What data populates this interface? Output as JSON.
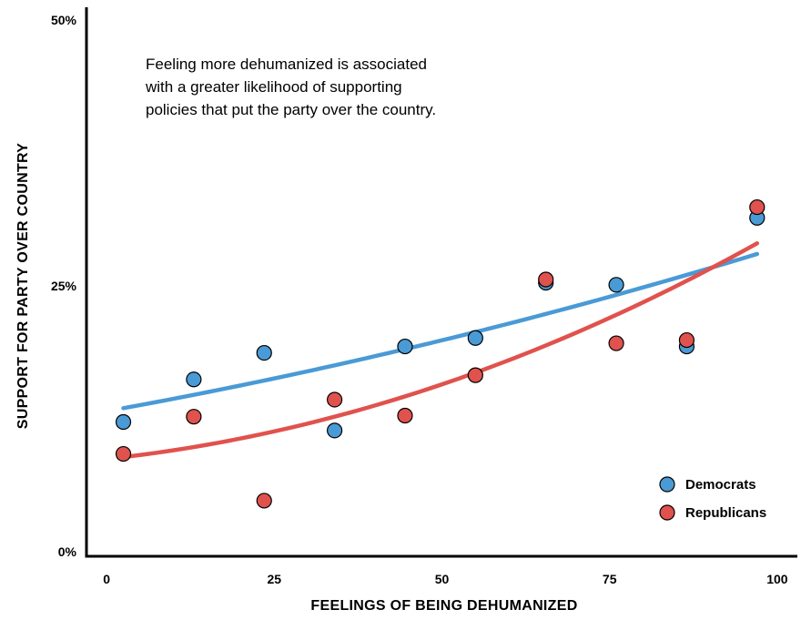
{
  "chart_data": {
    "type": "scatter",
    "xlabel": "FEELINGS OF BEING DEHUMANIZED",
    "ylabel": "SUPPORT FOR PARTY OVER COUNTRY",
    "xlim": [
      -3,
      103
    ],
    "ylim": [
      0,
      50
    ],
    "x_ticks": [
      {
        "value": 0,
        "label": "0"
      },
      {
        "value": 25,
        "label": "25"
      },
      {
        "value": 50,
        "label": "50"
      },
      {
        "value": 75,
        "label": "75"
      },
      {
        "value": 100,
        "label": "100"
      }
    ],
    "y_ticks": [
      {
        "value": 0,
        "label": "0%"
      },
      {
        "value": 25,
        "label": "25%"
      },
      {
        "value": 50,
        "label": "50%"
      }
    ],
    "annotation": [
      "Feeling more dehumanized is associated",
      "with a greater likelihood of supporting",
      "policies that put the party over the country."
    ],
    "legend": {
      "position": "bottom-right"
    },
    "grid": false,
    "series": [
      {
        "name": "Democrats",
        "color": "#4a9ad6",
        "x": [
          2.5,
          13,
          23.5,
          34,
          44.5,
          55,
          65.5,
          76,
          86.5,
          97
        ],
        "y": [
          12.2,
          16.2,
          18.7,
          11.4,
          19.3,
          20.1,
          25.3,
          25.1,
          19.3,
          31.4
        ],
        "trend": {
          "x": [
            2.5,
            97
          ],
          "start": 13.5,
          "end": 28.0,
          "curvature": 0.25
        }
      },
      {
        "name": "Republicans",
        "color": "#e0524d",
        "x": [
          2.5,
          13,
          23.5,
          34,
          44.5,
          55,
          65.5,
          76,
          86.5,
          97
        ],
        "y": [
          9.2,
          12.7,
          4.8,
          14.3,
          12.8,
          16.6,
          25.6,
          19.6,
          19.9,
          32.4
        ],
        "trend": {
          "x": [
            2.5,
            97
          ],
          "start": 8.9,
          "end": 29.0,
          "curvature": 0.65
        }
      }
    ]
  }
}
